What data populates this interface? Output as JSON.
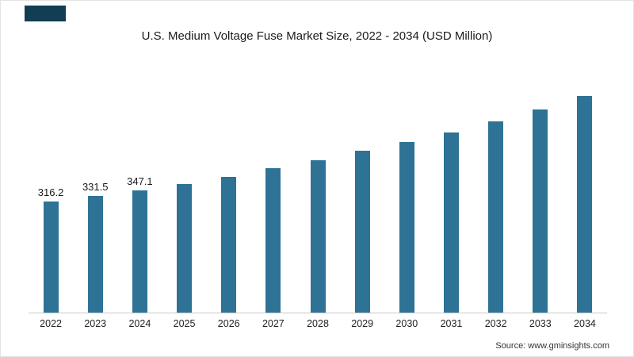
{
  "chart_data": {
    "type": "bar",
    "title": "U.S. Medium Voltage Fuse Market Size, 2022 - 2034 (USD Million)",
    "categories": [
      "2022",
      "2023",
      "2024",
      "2025",
      "2026",
      "2027",
      "2028",
      "2029",
      "2030",
      "2031",
      "2032",
      "2033",
      "2034"
    ],
    "values": [
      316.2,
      331.5,
      347.1,
      366,
      387,
      410,
      434,
      460,
      486,
      513,
      544,
      577,
      616
    ],
    "data_labels": [
      "316.2",
      "331.5",
      "347.1",
      "",
      "",
      "",
      "",
      "",
      "",
      "",
      "",
      "",
      ""
    ],
    "xlabel": "",
    "ylabel": "",
    "ylim": [
      0,
      650
    ],
    "grid": false,
    "legend": false,
    "bar_color": "#2e7295",
    "axis_line_color": "#c9c9c9"
  },
  "source": {
    "label": "Source: www.gminsights.com"
  }
}
